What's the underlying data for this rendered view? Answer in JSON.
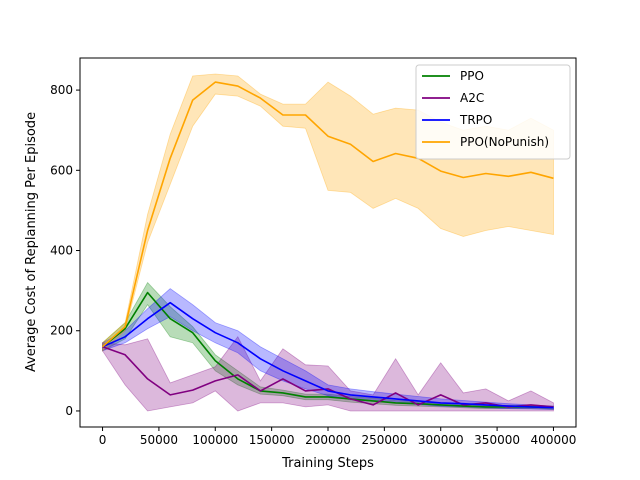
{
  "chart_data": {
    "type": "line",
    "title": "",
    "xlabel": "Training Steps",
    "ylabel": "Average Cost of Replanning Per Episode",
    "xlim": [
      -20000,
      420000
    ],
    "ylim": [
      -40,
      880
    ],
    "xticks": [
      0,
      50000,
      100000,
      150000,
      200000,
      250000,
      300000,
      350000,
      400000
    ],
    "xtick_labels": [
      "0",
      "50000",
      "100000",
      "150000",
      "200000",
      "250000",
      "300000",
      "350000",
      "400000"
    ],
    "yticks": [
      0,
      200,
      400,
      600,
      800
    ],
    "ytick_labels": [
      "0",
      "200",
      "400",
      "600",
      "800"
    ],
    "grid": false,
    "legend_position": "top-right",
    "series": [
      {
        "name": "PPO",
        "color": "#008000",
        "x": [
          0,
          20000,
          40000,
          60000,
          80000,
          100000,
          120000,
          140000,
          160000,
          180000,
          200000,
          220000,
          240000,
          260000,
          280000,
          300000,
          320000,
          340000,
          360000,
          380000,
          400000
        ],
        "y": [
          160,
          205,
          295,
          230,
          195,
          125,
          80,
          50,
          45,
          35,
          35,
          30,
          25,
          20,
          18,
          15,
          12,
          10,
          10,
          10,
          8
        ],
        "lower": [
          150,
          180,
          265,
          185,
          170,
          100,
          65,
          42,
          38,
          28,
          28,
          22,
          18,
          14,
          12,
          10,
          8,
          6,
          6,
          6,
          4
        ],
        "upper": [
          170,
          220,
          320,
          260,
          210,
          140,
          100,
          60,
          52,
          42,
          42,
          36,
          32,
          26,
          24,
          20,
          16,
          14,
          14,
          14,
          12
        ]
      },
      {
        "name": "A2C",
        "color": "#800080",
        "x": [
          0,
          20000,
          40000,
          60000,
          80000,
          100000,
          120000,
          140000,
          160000,
          180000,
          200000,
          220000,
          240000,
          260000,
          280000,
          300000,
          320000,
          340000,
          360000,
          380000,
          400000
        ],
        "y": [
          160,
          140,
          80,
          40,
          52,
          75,
          90,
          50,
          80,
          50,
          55,
          30,
          15,
          45,
          15,
          40,
          15,
          20,
          10,
          15,
          10
        ],
        "lower": [
          150,
          65,
          0,
          10,
          20,
          50,
          0,
          20,
          20,
          10,
          15,
          0,
          0,
          0,
          0,
          0,
          0,
          0,
          0,
          0,
          0
        ],
        "upper": [
          170,
          165,
          180,
          70,
          90,
          110,
          185,
          75,
          155,
          115,
          112,
          50,
          40,
          130,
          40,
          120,
          45,
          55,
          25,
          50,
          20
        ]
      },
      {
        "name": "TRPO",
        "color": "#0000ff",
        "x": [
          0,
          20000,
          40000,
          60000,
          80000,
          100000,
          120000,
          140000,
          160000,
          180000,
          200000,
          220000,
          240000,
          260000,
          280000,
          300000,
          320000,
          340000,
          360000,
          380000,
          400000
        ],
        "y": [
          160,
          185,
          230,
          270,
          230,
          195,
          170,
          130,
          100,
          75,
          50,
          40,
          35,
          30,
          25,
          20,
          18,
          15,
          12,
          10,
          8
        ],
        "lower": [
          150,
          170,
          205,
          235,
          200,
          170,
          145,
          100,
          75,
          55,
          38,
          28,
          24,
          20,
          16,
          12,
          10,
          8,
          6,
          5,
          4
        ],
        "upper": [
          170,
          200,
          255,
          305,
          265,
          220,
          200,
          160,
          130,
          100,
          65,
          55,
          48,
          42,
          36,
          30,
          26,
          22,
          18,
          15,
          12
        ]
      },
      {
        "name": "PPO(NoPunish)",
        "color": "#ffa500",
        "x": [
          0,
          20000,
          40000,
          60000,
          80000,
          100000,
          120000,
          140000,
          160000,
          180000,
          200000,
          220000,
          240000,
          260000,
          280000,
          300000,
          320000,
          340000,
          360000,
          380000,
          400000
        ],
        "y": [
          160,
          210,
          450,
          630,
          775,
          820,
          810,
          780,
          738,
          738,
          685,
          665,
          622,
          642,
          630,
          598,
          582,
          592,
          585,
          595,
          580
        ],
        "lower": [
          150,
          200,
          420,
          565,
          710,
          790,
          785,
          760,
          710,
          705,
          550,
          545,
          505,
          530,
          505,
          455,
          435,
          450,
          460,
          450,
          440
        ],
        "upper": [
          170,
          220,
          490,
          690,
          835,
          840,
          835,
          790,
          765,
          765,
          820,
          785,
          740,
          755,
          750,
          720,
          700,
          710,
          700,
          730,
          700
        ]
      }
    ]
  }
}
